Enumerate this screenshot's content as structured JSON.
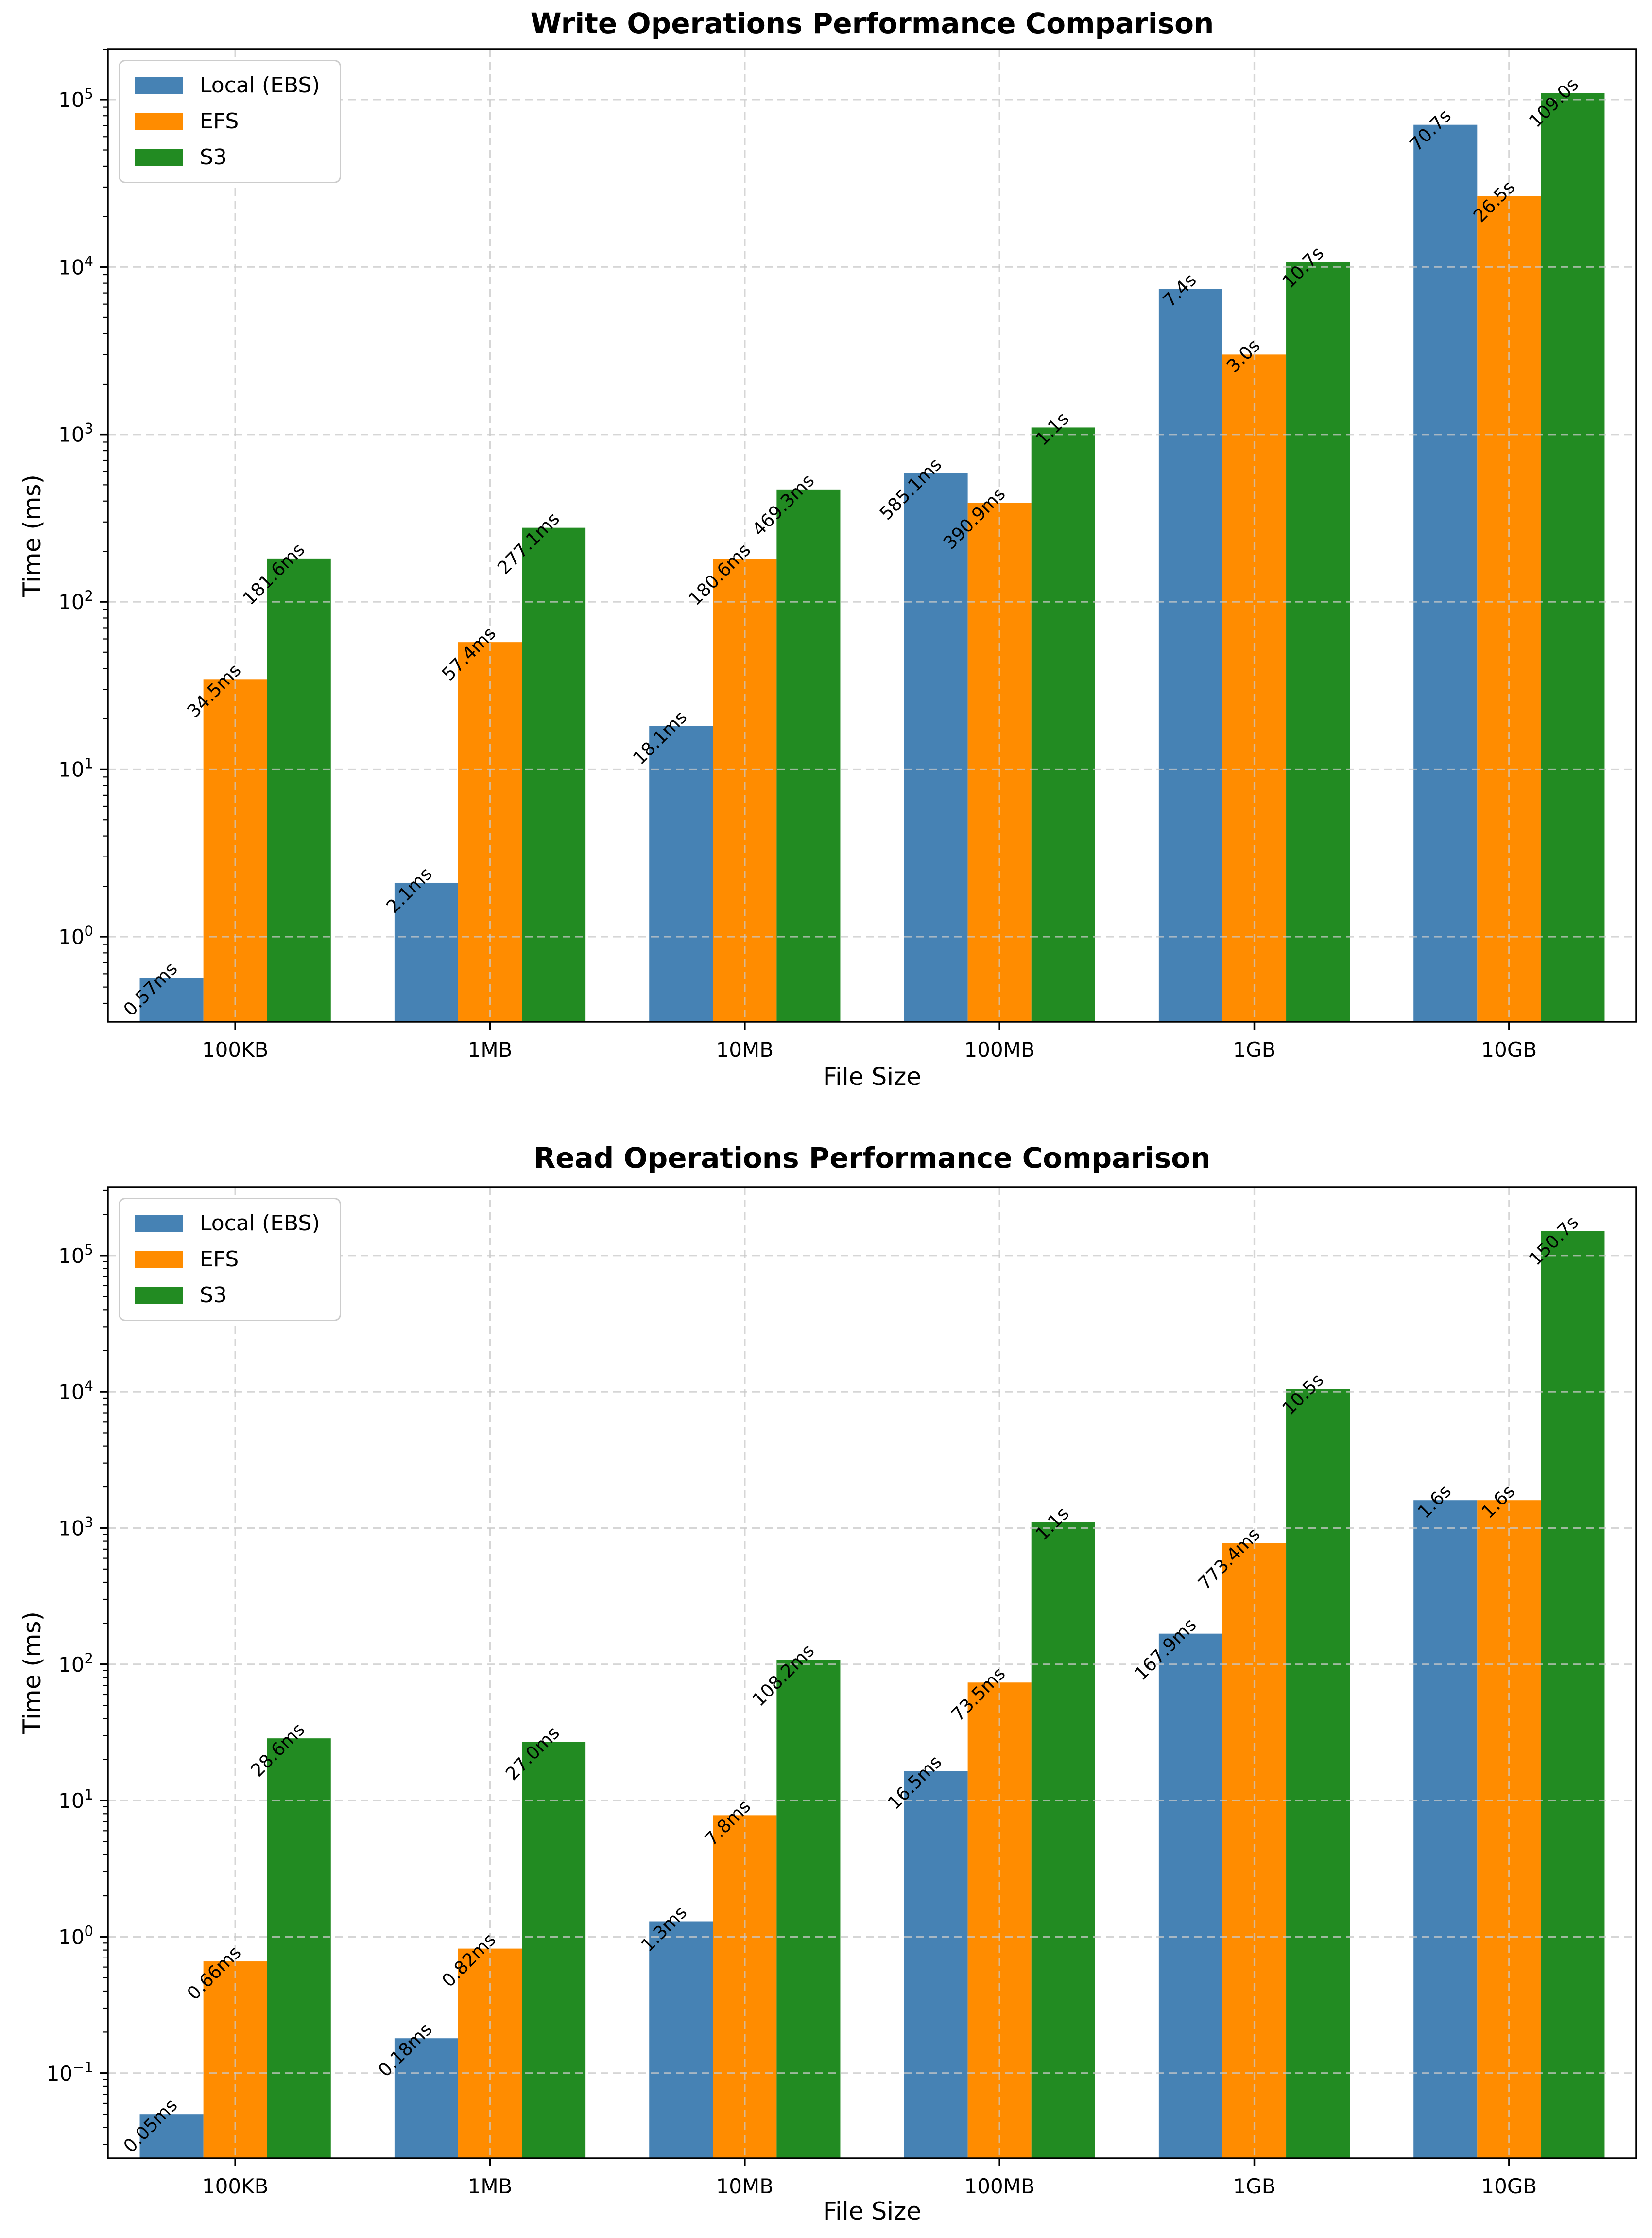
{
  "figure": {
    "background": "#ffffff"
  },
  "series": [
    {
      "label": "Local (EBS)",
      "color": "#4682B4"
    },
    {
      "label": "EFS",
      "color": "#FF8C00"
    },
    {
      "label": "S3",
      "color": "#228B22"
    }
  ],
  "chart_data": [
    {
      "type": "bar",
      "title": "Write Operations Performance Comparison",
      "xlabel": "File Size",
      "ylabel": "Time (ms)",
      "yscale": "log",
      "grid": true,
      "legend_position": "upper left",
      "categories": [
        "100KB",
        "1MB",
        "10MB",
        "100MB",
        "1GB",
        "10GB"
      ],
      "ytick_exponents": [
        0,
        1,
        2,
        3,
        4,
        5
      ],
      "ylim_note": "log scale, 5% log margins around data range 0.57ms..109000ms",
      "series": [
        {
          "name": "Local (EBS)",
          "values_ms": [
            0.57,
            2.1,
            18.1,
            585.1,
            7400,
            70700
          ],
          "labels": [
            "0.57ms",
            "2.1ms",
            "18.1ms",
            "585.1ms",
            "7.4s",
            "70.7s"
          ]
        },
        {
          "name": "EFS",
          "values_ms": [
            34.5,
            57.4,
            180.6,
            390.9,
            3000,
            26500
          ],
          "labels": [
            "34.5ms",
            "57.4ms",
            "180.6ms",
            "390.9ms",
            "3.0s",
            "26.5s"
          ]
        },
        {
          "name": "S3",
          "values_ms": [
            181.6,
            277.1,
            469.3,
            1100,
            10700,
            109000
          ],
          "labels": [
            "181.6ms",
            "277.1ms",
            "469.3ms",
            "1.1s",
            "10.7s",
            "109.0s"
          ]
        }
      ]
    },
    {
      "type": "bar",
      "title": "Read Operations Performance Comparison",
      "xlabel": "File Size",
      "ylabel": "Time (ms)",
      "yscale": "log",
      "grid": true,
      "legend_position": "upper left",
      "categories": [
        "100KB",
        "1MB",
        "10MB",
        "100MB",
        "1GB",
        "10GB"
      ],
      "ytick_exponents": [
        -1,
        0,
        1,
        2,
        3,
        4,
        5
      ],
      "ylim_note": "log scale, 5% log margins around data range 0.05ms..150700ms",
      "series": [
        {
          "name": "Local (EBS)",
          "values_ms": [
            0.05,
            0.18,
            1.3,
            16.5,
            167.9,
            1600
          ],
          "labels": [
            "0.05ms",
            "0.18ms",
            "1.3ms",
            "16.5ms",
            "167.9ms",
            "1.6s"
          ]
        },
        {
          "name": "EFS",
          "values_ms": [
            0.66,
            0.82,
            7.8,
            73.5,
            773.4,
            1600
          ],
          "labels": [
            "0.66ms",
            "0.82ms",
            "7.8ms",
            "73.5ms",
            "773.4ms",
            "1.6s"
          ]
        },
        {
          "name": "S3",
          "values_ms": [
            28.6,
            27.0,
            108.2,
            1100,
            10500,
            150700
          ],
          "labels": [
            "28.6ms",
            "27.0ms",
            "108.2ms",
            "1.1s",
            "10.5s",
            "150.7s"
          ]
        }
      ]
    }
  ]
}
